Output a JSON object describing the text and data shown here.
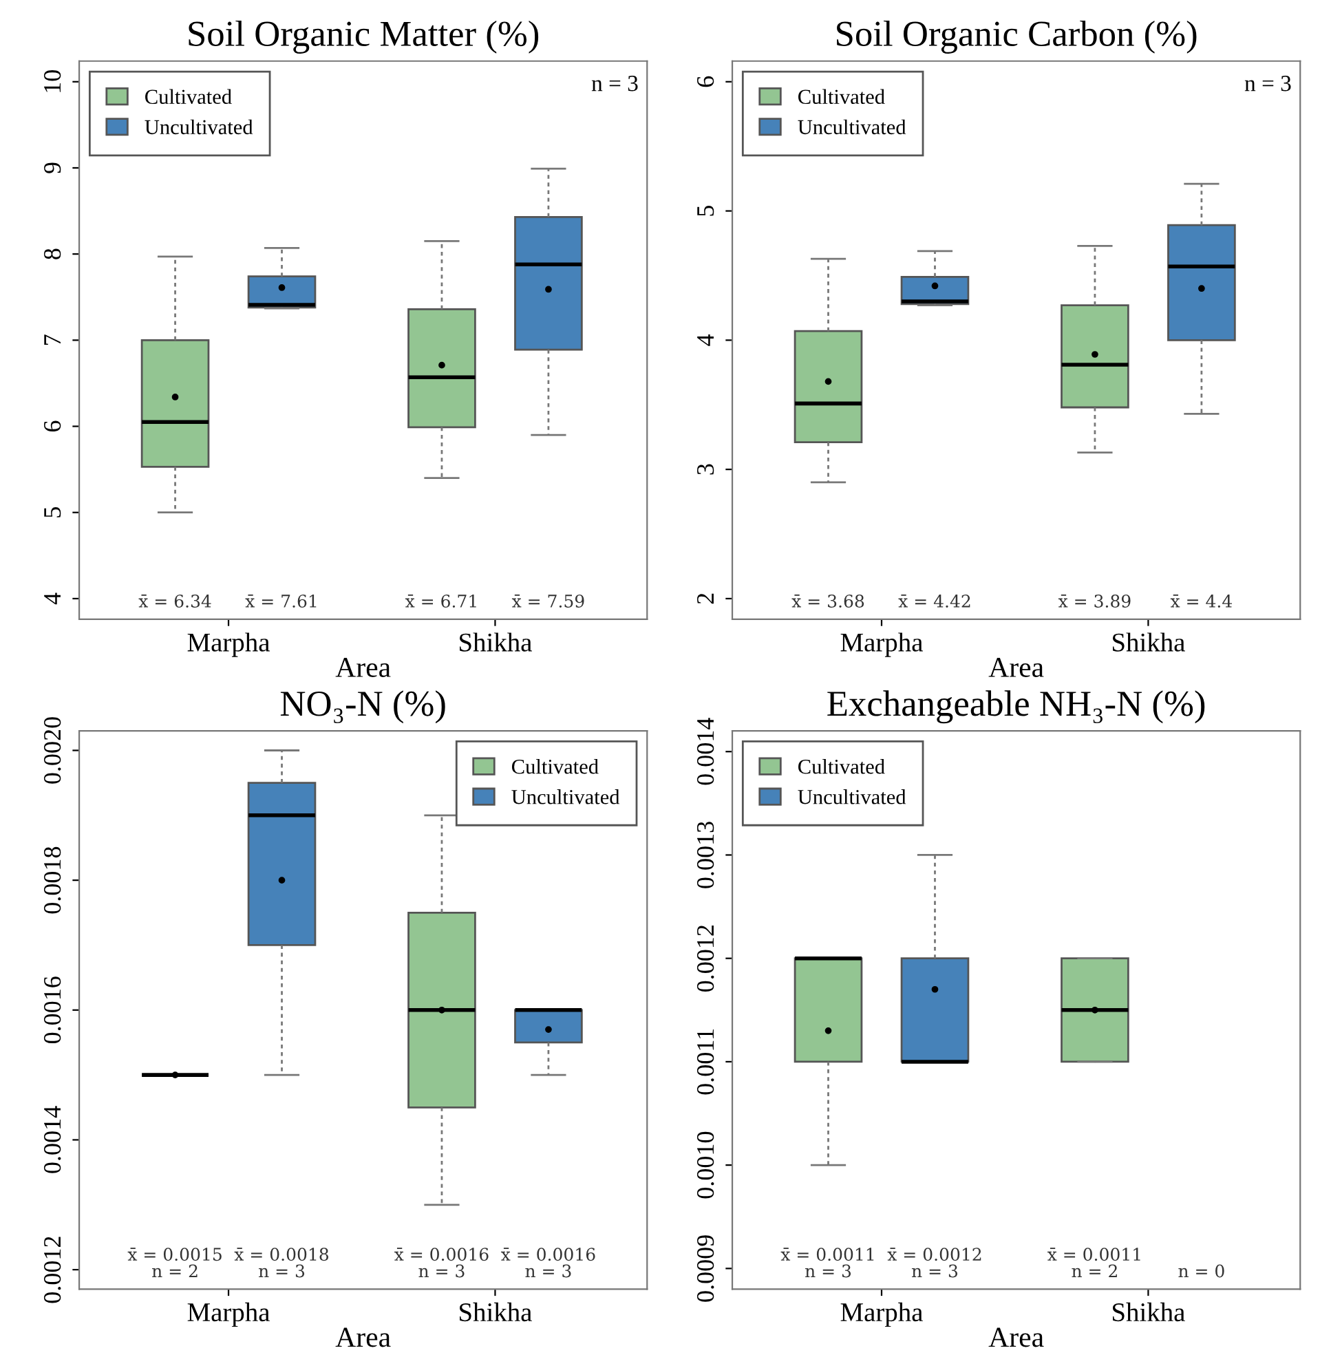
{
  "chart_data": [
    {
      "type": "box",
      "title": "Soil Organic Matter (%)",
      "xlabel": "Area",
      "categories": [
        "Marpha",
        "Shikha"
      ],
      "ylim": [
        3.76,
        10.24
      ],
      "yticks": [
        4,
        5,
        6,
        7,
        8,
        9,
        10
      ],
      "legend": "top left",
      "annotations": [
        "n = 3"
      ],
      "series": [
        {
          "name": "Cultivated",
          "color": "#93c592",
          "boxes": [
            {
              "low": 5.0,
              "q1": 5.53,
              "median": 6.05,
              "q3": 7.0,
              "high": 7.97,
              "mean": 6.34
            },
            {
              "low": 5.4,
              "q1": 5.99,
              "median": 6.57,
              "q3": 7.36,
              "high": 8.15,
              "mean": 6.71
            }
          ],
          "value_labels": [
            "x̄ = 6.34",
            "x̄ = 6.71"
          ]
        },
        {
          "name": "Uncultivated",
          "color": "#4682b9",
          "boxes": [
            {
              "low": 7.37,
              "q1": 7.38,
              "median": 7.41,
              "q3": 7.74,
              "high": 8.07,
              "mean": 7.61
            },
            {
              "low": 5.9,
              "q1": 6.89,
              "median": 7.88,
              "q3": 8.43,
              "high": 8.99,
              "mean": 7.59
            }
          ],
          "value_labels": [
            "x̄ = 7.61",
            "x̄ = 7.59"
          ]
        }
      ]
    },
    {
      "type": "box",
      "title": "Soil Organic Carbon (%)",
      "xlabel": "Area",
      "categories": [
        "Marpha",
        "Shikha"
      ],
      "ylim": [
        1.84,
        6.16
      ],
      "yticks": [
        2,
        3,
        4,
        5,
        6
      ],
      "legend": "top left",
      "annotations": [
        "n = 3"
      ],
      "series": [
        {
          "name": "Cultivated",
          "color": "#93c592",
          "boxes": [
            {
              "low": 2.9,
              "q1": 3.21,
              "median": 3.51,
              "q3": 4.07,
              "high": 4.63,
              "mean": 3.68
            },
            {
              "low": 3.13,
              "q1": 3.48,
              "median": 3.81,
              "q3": 4.27,
              "high": 4.73,
              "mean": 3.89
            }
          ],
          "value_labels": [
            "x̄ = 3.68",
            "x̄ = 3.89"
          ]
        },
        {
          "name": "Uncultivated",
          "color": "#4682b9",
          "boxes": [
            {
              "low": 4.27,
              "q1": 4.28,
              "median": 4.3,
              "q3": 4.49,
              "high": 4.69,
              "mean": 4.42
            },
            {
              "low": 3.43,
              "q1": 4.0,
              "median": 4.57,
              "q3": 4.89,
              "high": 5.21,
              "mean": 4.4
            }
          ],
          "value_labels": [
            "x̄ = 4.42",
            "x̄ = 4.4"
          ]
        }
      ]
    },
    {
      "type": "box",
      "title": "NO₃-N (%)",
      "xlabel": "Area",
      "categories": [
        "Marpha",
        "Shikha"
      ],
      "ylim": [
        0.00117,
        0.00203
      ],
      "yticks": [
        {
          "value": 0.0012,
          "label": "0.0012"
        },
        {
          "value": 0.0014,
          "label": "0.0014"
        },
        {
          "value": 0.0016,
          "label": "0.0016"
        },
        {
          "value": 0.0018,
          "label": "0.0018"
        },
        {
          "value": 0.002,
          "label": "0.0020"
        }
      ],
      "legend": "top right",
      "series": [
        {
          "name": "Cultivated",
          "color": "#93c592",
          "boxes": [
            {
              "low": 0.0015,
              "q1": 0.0015,
              "median": 0.0015,
              "q3": 0.0015,
              "high": 0.0015,
              "mean": 0.0015
            },
            {
              "low": 0.0013,
              "q1": 0.00145,
              "median": 0.0016,
              "q3": 0.00175,
              "high": 0.0019,
              "mean": 0.0016
            }
          ],
          "value_labels": [
            "x̄ = 0.0015\nn = 2",
            "x̄ = 0.0016\nn = 3"
          ]
        },
        {
          "name": "Uncultivated",
          "color": "#4682b9",
          "boxes": [
            {
              "low": 0.0015,
              "q1": 0.0017,
              "median": 0.0019,
              "q3": 0.00195,
              "high": 0.002,
              "mean": 0.0018
            },
            {
              "low": 0.0015,
              "q1": 0.00155,
              "median": 0.0016,
              "q3": 0.0016,
              "high": 0.0016,
              "mean": 0.00157
            }
          ],
          "value_labels": [
            "x̄ = 0.0018\nn = 3",
            "x̄ = 0.0016\nn = 3"
          ]
        }
      ]
    },
    {
      "type": "box",
      "title": "Exchangeable NH₃-N (%)",
      "xlabel": "Area",
      "categories": [
        "Marpha",
        "Shikha"
      ],
      "ylim": [
        0.00088,
        0.00142
      ],
      "yticks": [
        {
          "value": 0.0009,
          "label": "0.0009"
        },
        {
          "value": 0.001,
          "label": "0.0010"
        },
        {
          "value": 0.0011,
          "label": "0.0011"
        },
        {
          "value": 0.0012,
          "label": "0.0012"
        },
        {
          "value": 0.0013,
          "label": "0.0013"
        },
        {
          "value": 0.0014,
          "label": "0.0014"
        }
      ],
      "legend": "top left",
      "series": [
        {
          "name": "Cultivated",
          "color": "#93c592",
          "boxes": [
            {
              "low": 0.001,
              "q1": 0.0011,
              "median": 0.0012,
              "q3": 0.0012,
              "high": 0.0012,
              "mean": 0.00113
            },
            {
              "low": 0.0011,
              "q1": 0.0011,
              "median": 0.00115,
              "q3": 0.0012,
              "high": 0.0012,
              "mean": 0.00115
            }
          ],
          "value_labels": [
            "x̄ = 0.0011\nn = 3",
            "x̄ = 0.0011\nn = 2"
          ]
        },
        {
          "name": "Uncultivated",
          "color": "#4682b9",
          "boxes": [
            {
              "low": 0.0011,
              "q1": 0.0011,
              "median": 0.0011,
              "q3": 0.0012,
              "high": 0.0013,
              "mean": 0.00117
            },
            null
          ],
          "value_labels": [
            "x̄ = 0.0012\nn = 3",
            "n = 0"
          ]
        }
      ]
    }
  ]
}
